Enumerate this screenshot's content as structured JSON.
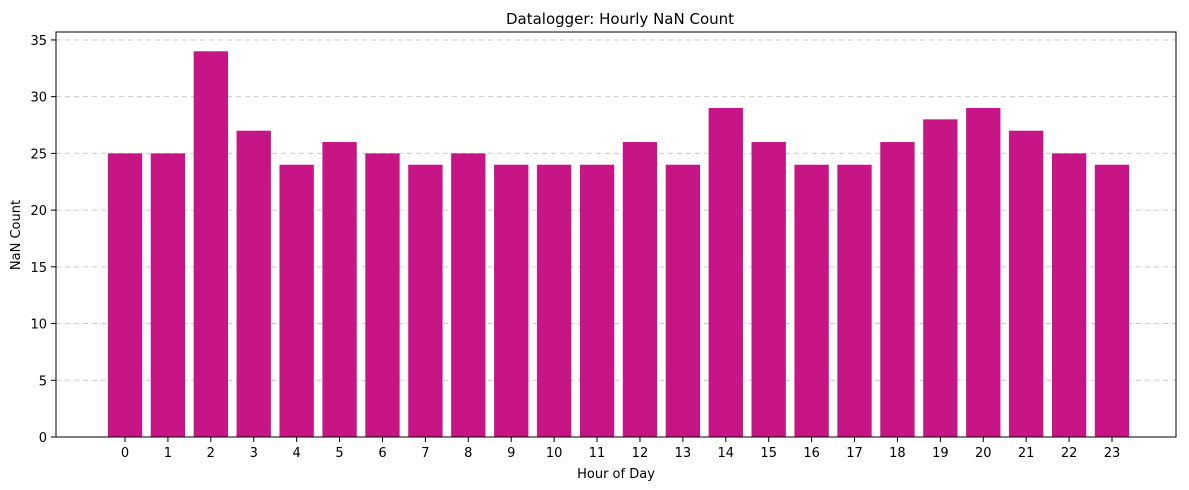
{
  "chart_data": {
    "type": "bar",
    "title": "Datalogger: Hourly NaN Count",
    "xlabel": "Hour of Day",
    "ylabel": "NaN Count",
    "categories": [
      "0",
      "1",
      "2",
      "3",
      "4",
      "5",
      "6",
      "7",
      "8",
      "9",
      "10",
      "11",
      "12",
      "13",
      "14",
      "15",
      "16",
      "17",
      "18",
      "19",
      "20",
      "21",
      "22",
      "23"
    ],
    "values": [
      25,
      25,
      34,
      27,
      24,
      26,
      25,
      24,
      25,
      24,
      24,
      24,
      26,
      24,
      29,
      26,
      24,
      24,
      26,
      28,
      29,
      27,
      25,
      24
    ],
    "ylim": [
      0,
      35.7
    ],
    "yticks": [
      0,
      5,
      10,
      15,
      20,
      25,
      30,
      35
    ],
    "bar_color": "#c71585",
    "grid": "y-dashed",
    "legend": "none"
  }
}
